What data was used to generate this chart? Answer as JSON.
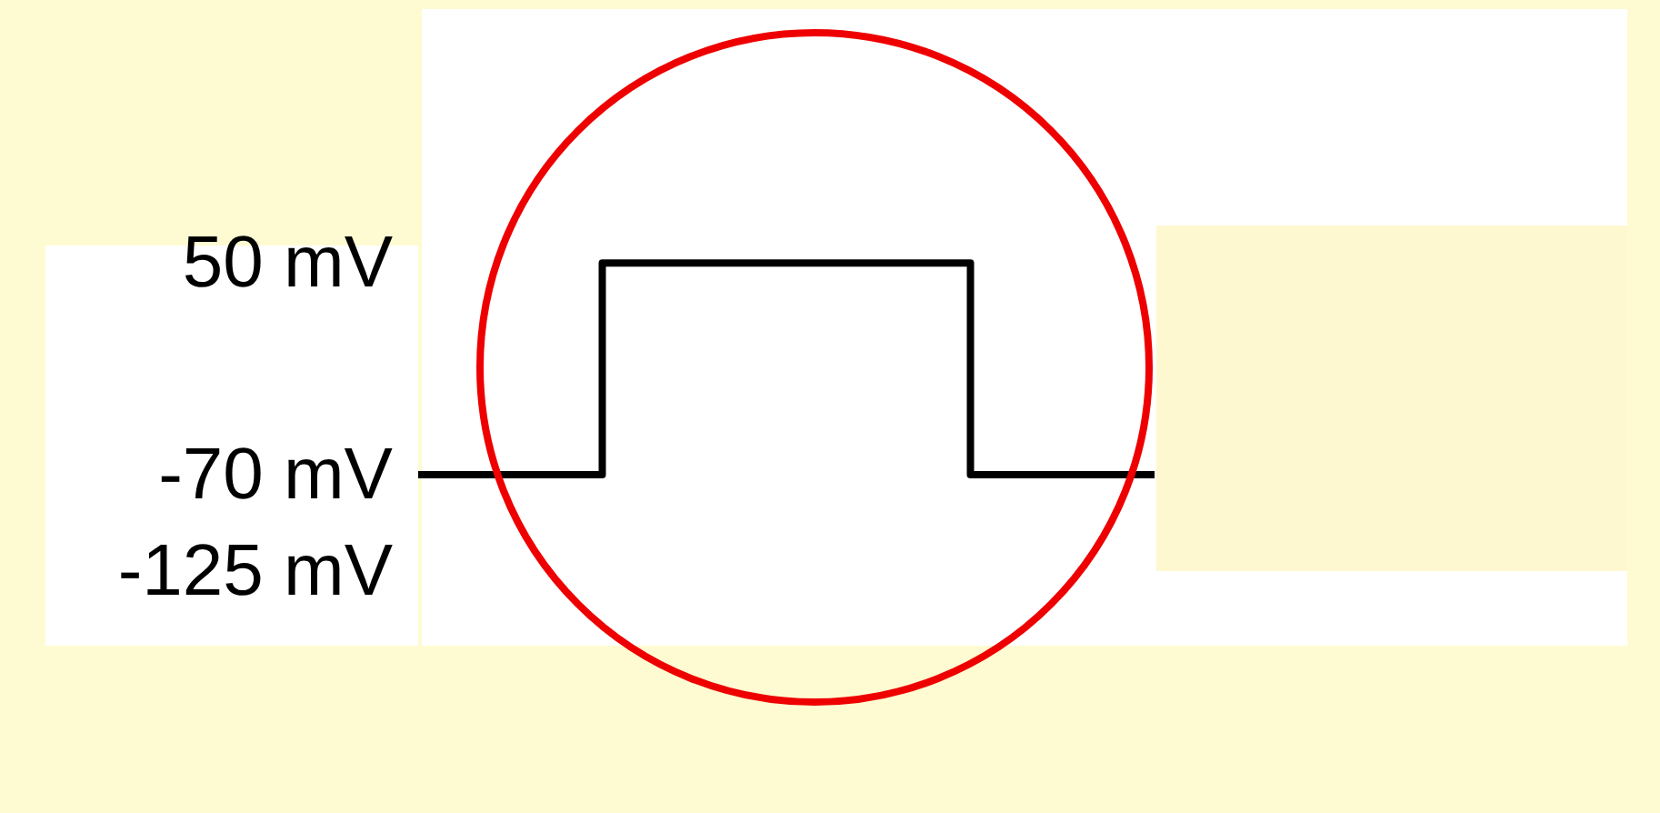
{
  "chart_data": {
    "type": "step",
    "categories": [
      null,
      null,
      null,
      null,
      null
    ],
    "series": [
      {
        "color": "#000000",
        "values": [
          -70,
          50,
          50,
          -70,
          -70
        ]
      }
    ],
    "ylim": [
      -167,
      194
    ],
    "yticks": [
      {
        "value": 50,
        "label": "50 mV"
      },
      {
        "value": -70,
        "label": "-70 mV"
      },
      {
        "value": -125,
        "label": "-125 mV"
      }
    ],
    "tick_labels": "y",
    "grid": false,
    "marker": "none",
    "line_style": "solid"
  }
}
